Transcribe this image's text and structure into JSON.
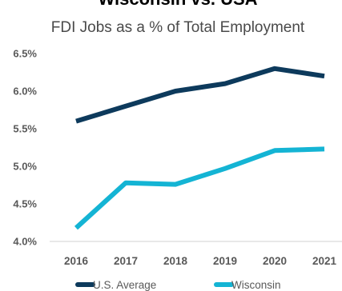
{
  "chart_data": {
    "type": "line",
    "title": "Wisconsin vs. USA",
    "subtitle": "FDI Jobs as a % of Total Employment",
    "x": [
      "2016",
      "2017",
      "2018",
      "2019",
      "2020",
      "2021"
    ],
    "yticks": [
      "4.0%",
      "4.5%",
      "5.0%",
      "5.5%",
      "6.0%",
      "6.5%"
    ],
    "ylim": [
      4.0,
      6.5
    ],
    "grid": false,
    "legend_position": "bottom",
    "series": [
      {
        "name": "U.S. Average",
        "color": "#0d3a5c",
        "values": [
          5.6,
          5.8,
          6.0,
          6.1,
          6.3,
          6.2
        ]
      },
      {
        "name": "Wisconsin",
        "color": "#14b4d4",
        "values": [
          4.18,
          4.78,
          4.76,
          4.97,
          5.21,
          5.23
        ]
      }
    ]
  }
}
